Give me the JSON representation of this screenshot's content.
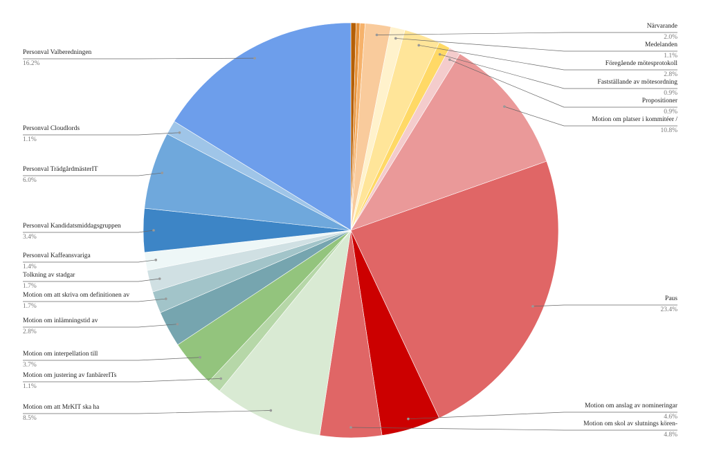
{
  "chart_data": {
    "type": "pie",
    "categories": [
      null,
      null,
      null,
      "Närvarande",
      "Medelanden",
      "Föregående mötesprotokoll",
      "Fastställande av mötesordning",
      "Propositioner",
      "Motion om platser i kommitéer /",
      "Paus",
      "Motion om anslag av nomineringar",
      "Motion om skol av slutnings kören-",
      "Motion om att MrKIT ska ha",
      "Motion om justering av fanbärerITs",
      "Motion om interpellation till",
      "Motion om inlämningstid av",
      "Motion om att skriva om definitionen av",
      "Tolkning av stadgar",
      "Personval Kaffeansvariga",
      "Personval Kandidatsmiddagsgruppen",
      "Personval TrädgårdmästerIT",
      "Personval Cloudlords",
      "Personval Valberedningen"
    ],
    "values": [
      0.4,
      0.3,
      0.4,
      2.0,
      1.1,
      2.8,
      0.9,
      0.9,
      10.8,
      23.4,
      4.6,
      4.8,
      8.5,
      1.1,
      3.7,
      2.8,
      1.7,
      1.7,
      1.4,
      3.4,
      6.0,
      1.1,
      16.2
    ],
    "value_labels": [
      null,
      null,
      null,
      "2.0%",
      "1.1%",
      "2.8%",
      "0.9%",
      "0.9%",
      "10.8%",
      "23.4%",
      "4.6%",
      "4.8%",
      "8.5%",
      "1.1%",
      "3.7%",
      "2.8%",
      "1.7%",
      "1.7%",
      "1.4%",
      "3.4%",
      "6.0%",
      "1.1%",
      "16.2%"
    ],
    "colors": [
      "#b45f06",
      "#e69138",
      "#f6b26b",
      "#f9cb9c",
      "#fff2cc",
      "#ffe599",
      "#ffd966",
      "#f4cccc",
      "#ea9999",
      "#e06666",
      "#cc0000",
      "#e06666",
      "#d9ead3",
      "#b6d7a8",
      "#93c47d",
      "#76a5af",
      "#a2c4c9",
      "#d0e0e3",
      "#eef7f7",
      "#3d85c6",
      "#6fa8dc",
      "#9fc5e8",
      "#6d9eeb"
    ]
  }
}
